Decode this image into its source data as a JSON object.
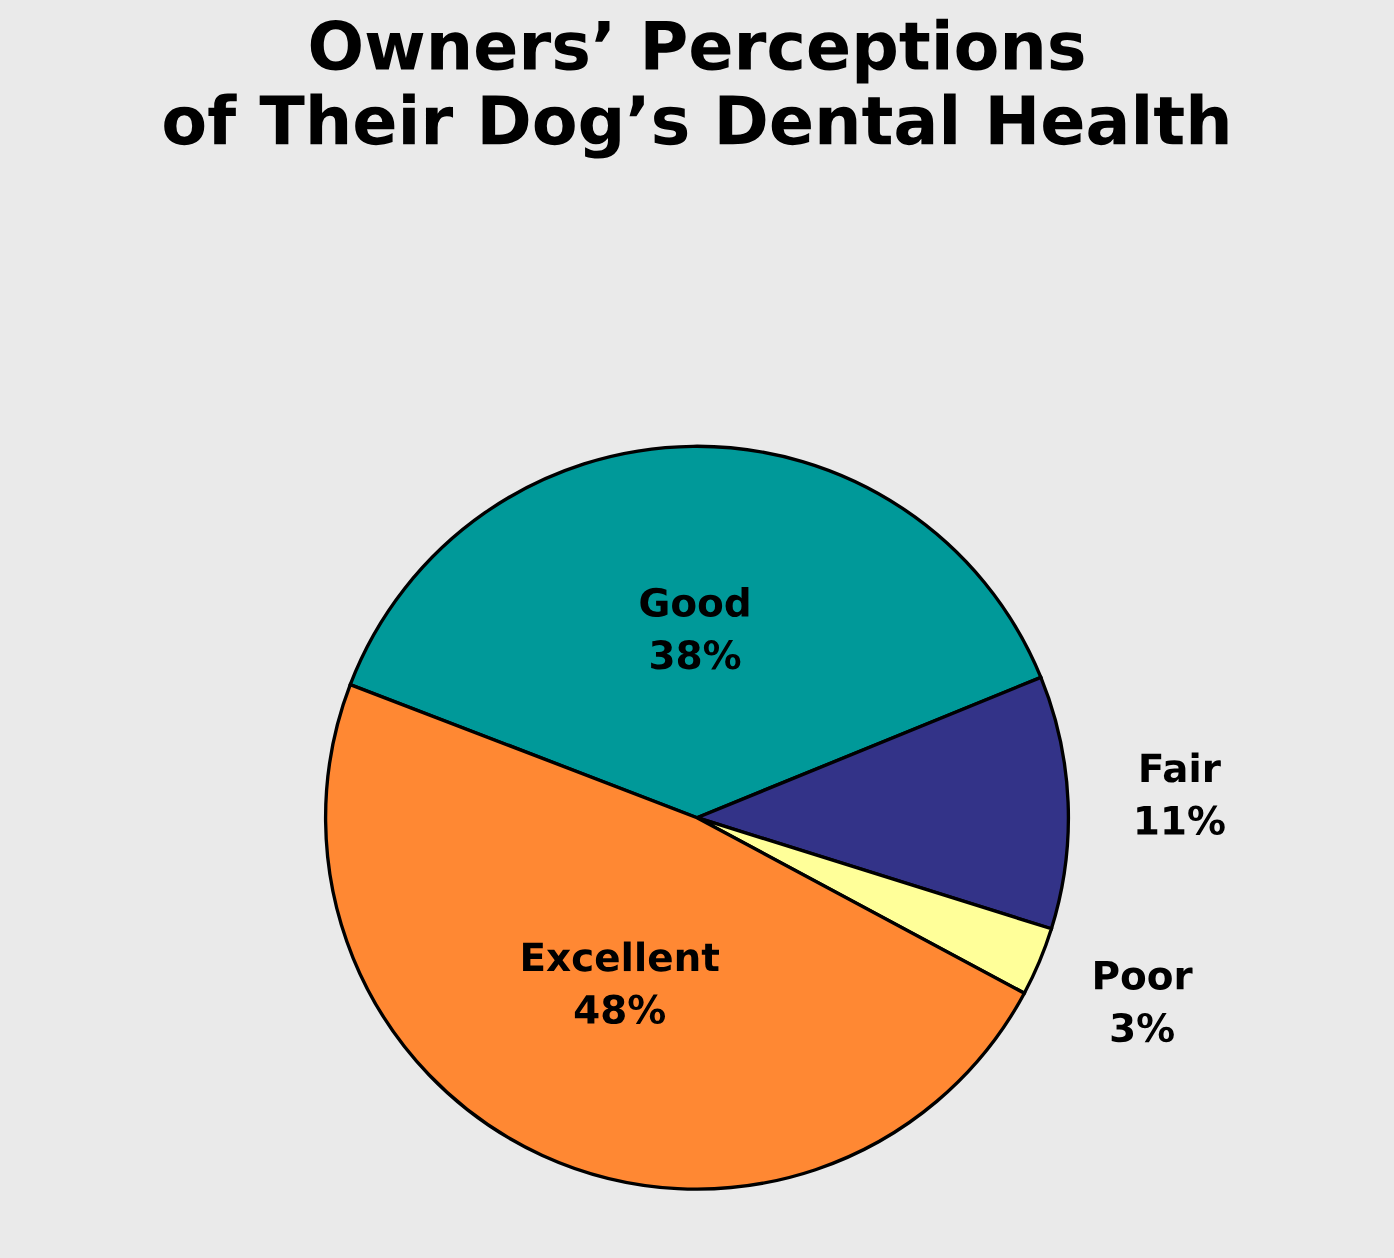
{
  "chart_data": {
    "type": "pie",
    "title": "Owners’ Perceptions\nof Their Dog’s Dental Health",
    "categories": [
      "Good",
      "Fair",
      "Poor",
      "Excellent"
    ],
    "values": [
      38,
      11,
      3,
      48
    ],
    "value_labels": [
      "38%",
      "11%",
      "3%",
      "48%"
    ],
    "colors": [
      "#009999",
      "#333388",
      "#ffff99",
      "#ff8833"
    ],
    "legend": false
  }
}
